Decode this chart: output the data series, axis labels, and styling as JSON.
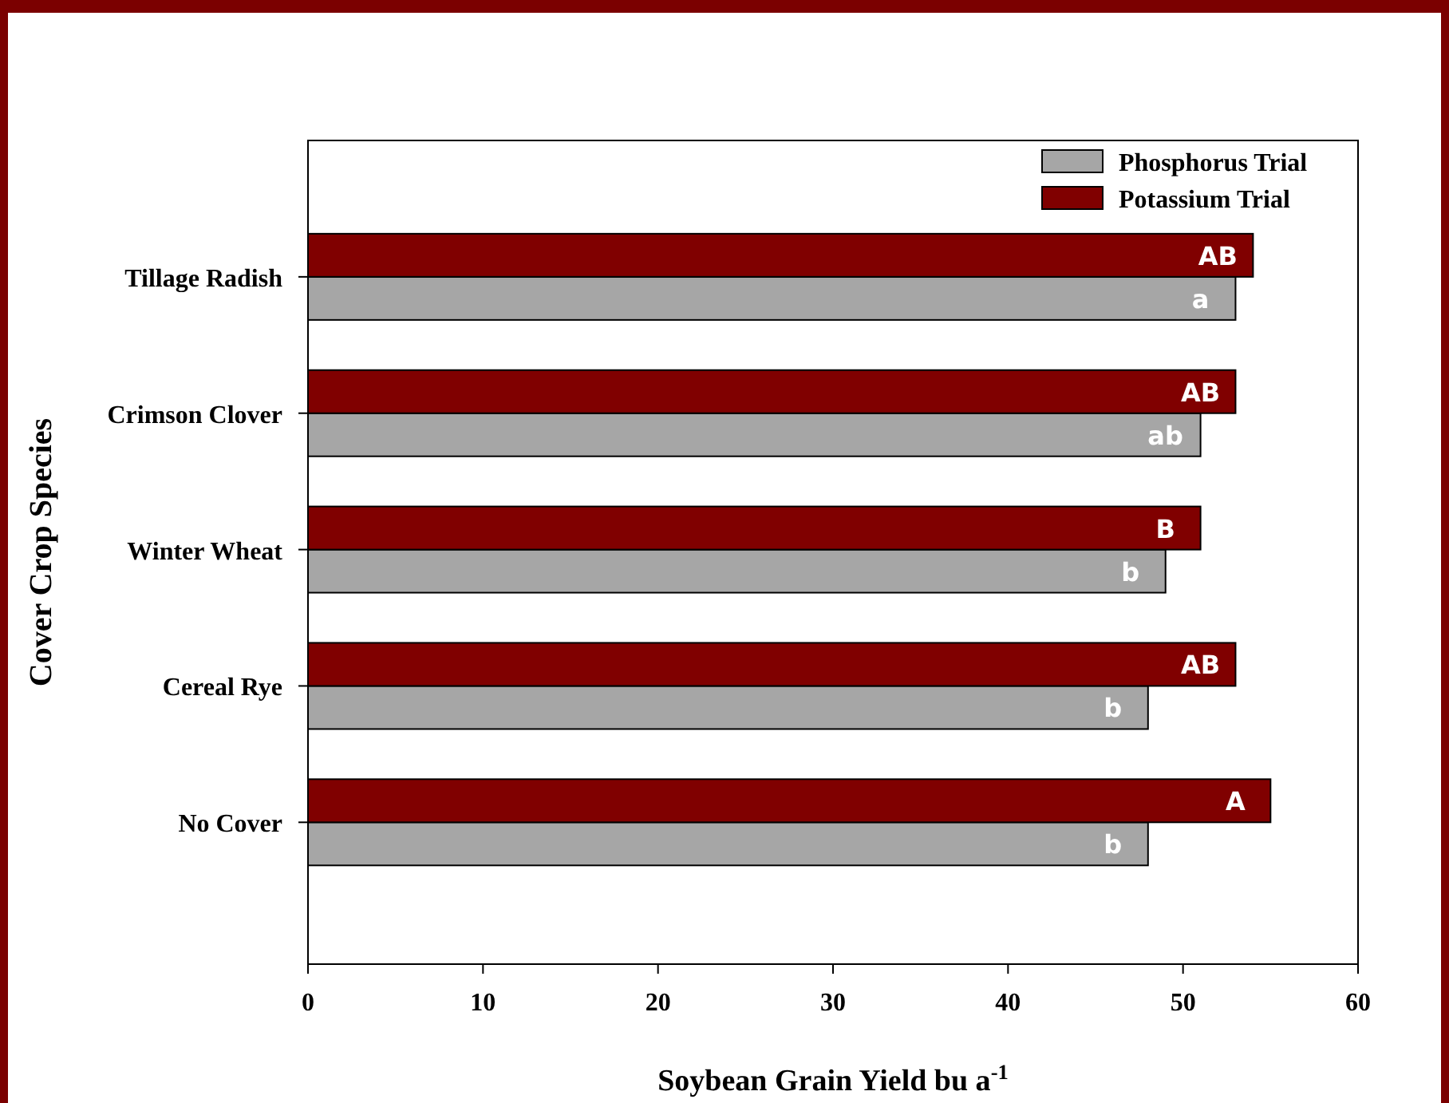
{
  "chart_data": {
    "type": "bar",
    "orientation": "horizontal",
    "xlabel": "Soybean Grain Yield bu a$^{-1}$",
    "ylabel": "Cover Crop Species",
    "categories": [
      "Tillage Radish",
      "Crimson Clover",
      "Winter Wheat",
      "Cereal Rye",
      "No Cover"
    ],
    "series": [
      {
        "name": "Phosphorus Trial",
        "color": "#a6a6a6",
        "values": [
          53,
          51,
          49,
          48,
          48
        ],
        "value_labels": [
          "a",
          "ab",
          "b",
          "b",
          "b"
        ]
      },
      {
        "name": "Potassium Trial",
        "color": "#800000",
        "values": [
          54,
          53,
          51,
          53,
          55
        ],
        "value_labels": [
          "AB",
          "AB",
          "B",
          "AB",
          "A"
        ]
      }
    ],
    "xlim": [
      0,
      60
    ],
    "xticks": [
      0,
      10,
      20,
      30,
      40,
      50,
      60
    ],
    "grid": false,
    "legend": "top right"
  }
}
